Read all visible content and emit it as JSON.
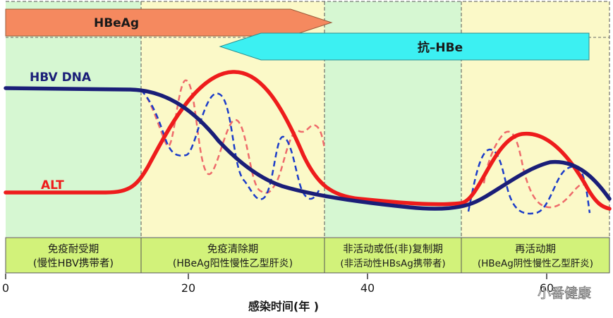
{
  "phases": [
    {
      "name": "免疫耐受期",
      "desc": "(慢性HBV携带者)",
      "color": "#d6f7d2"
    },
    {
      "name": "免疫清除期",
      "desc": "(HBeAg阳性慢性乙型肝炎)",
      "color": "#fbf9c8"
    },
    {
      "name": "非活动或低(非)复制期",
      "desc": "(非活动性HBsAg携带者)",
      "color": "#d6f7d2"
    },
    {
      "name": "再活动期",
      "desc": "(HBeAg阴性慢性乙型肝炎)",
      "color": "#fbf9c8"
    }
  ],
  "markers": {
    "hbeag": {
      "label": "HBeAg",
      "color": "#f5895f"
    },
    "anti_hbe": {
      "label": "抗–HBe",
      "color": "#3cf0f2"
    }
  },
  "curves": {
    "hbv_dna": {
      "label": "HBV DNA",
      "color": "#1a1e78"
    },
    "alt": {
      "label": "ALT",
      "color": "#ee1c1c"
    }
  },
  "axis": {
    "ticks": [
      "0",
      "20",
      "40",
      "60"
    ],
    "title": "感染时间(年 )"
  },
  "watermark": "小番健康"
}
